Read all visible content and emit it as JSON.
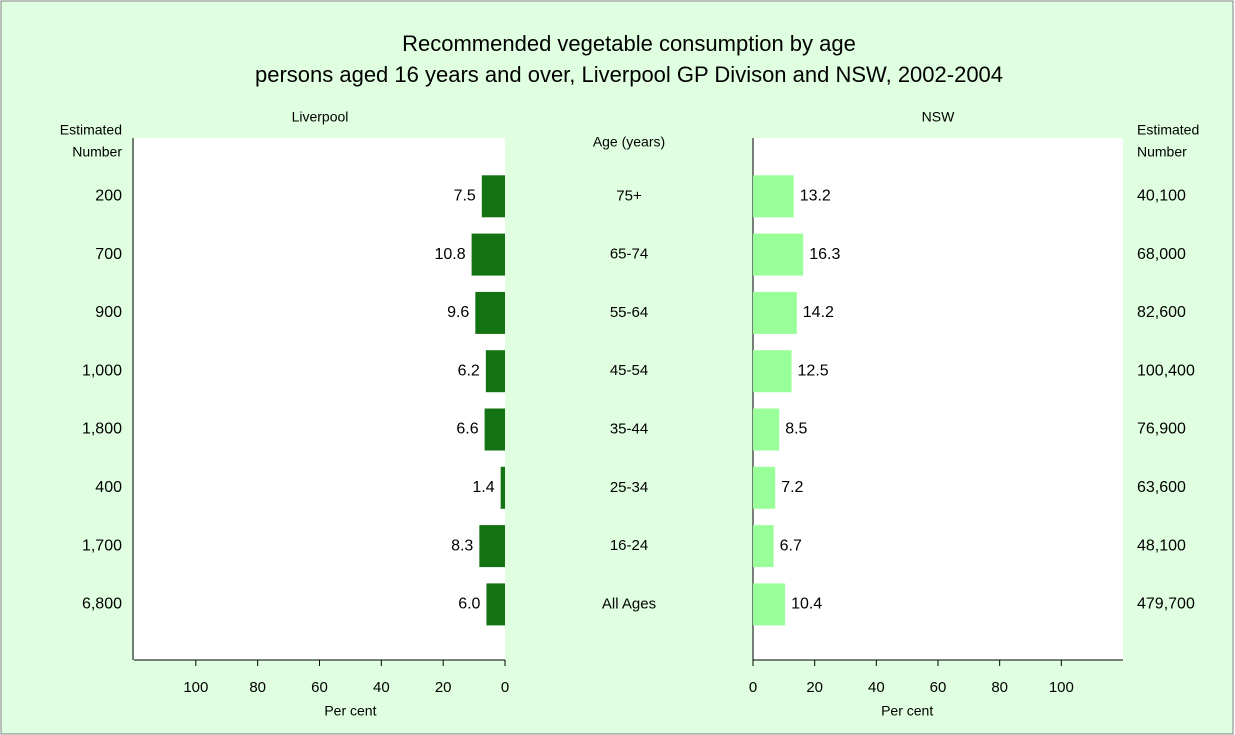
{
  "chart_data": {
    "type": "butterfly-bar",
    "title": "Recommended vegetable consumption by age",
    "subtitle": "persons aged 16 years and over, Liverpool GP Divison and NSW, 2002-2004",
    "category_label": "Age (years)",
    "categories": [
      "75+",
      "65-74",
      "55-64",
      "45-54",
      "35-44",
      "25-34",
      "16-24",
      "All Ages"
    ],
    "series": [
      {
        "name": "Liverpool",
        "side": "left",
        "color": "#137313",
        "values": [
          7.5,
          10.8,
          9.6,
          6.2,
          6.6,
          1.4,
          8.3,
          6.0
        ],
        "value_labels": [
          "7.5",
          "10.8",
          "9.6",
          "6.2",
          "6.6",
          "1.4",
          "8.3",
          "6.0"
        ],
        "xlim": [
          0,
          120
        ],
        "xticks": [
          0,
          20,
          40,
          60,
          80,
          100
        ],
        "xlabel": "Per cent",
        "estimated_header": [
          "Estimated",
          "Number"
        ],
        "estimated_number": [
          "200",
          "700",
          "900",
          "1,000",
          "1,800",
          "400",
          "1,700",
          "6,800"
        ]
      },
      {
        "name": "NSW",
        "side": "right",
        "color": "#99ff99",
        "values": [
          13.2,
          16.3,
          14.2,
          12.5,
          8.5,
          7.2,
          6.7,
          10.4
        ],
        "value_labels": [
          "13.2",
          "16.3",
          "14.2",
          "12.5",
          "8.5",
          "7.2",
          "6.7",
          "10.4"
        ],
        "xlim": [
          0,
          120
        ],
        "xticks": [
          0,
          20,
          40,
          60,
          80,
          100
        ],
        "xlabel": "Per cent",
        "estimated_header": [
          "Estimated",
          "Number"
        ],
        "estimated_number": [
          "40,100",
          "68,000",
          "82,600",
          "100,400",
          "76,900",
          "63,600",
          "48,100",
          "479,700"
        ]
      }
    ]
  }
}
